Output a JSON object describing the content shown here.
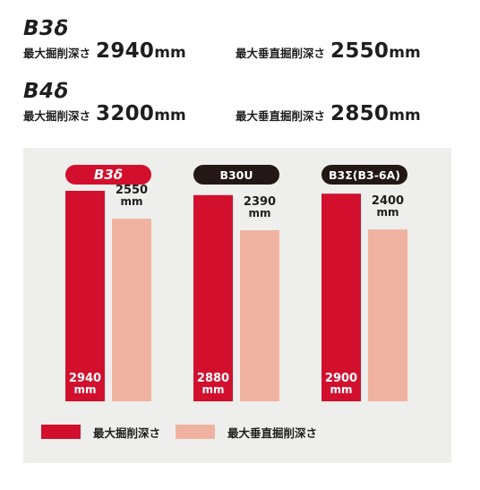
{
  "specs": [
    {
      "model": "B3δ",
      "items": [
        {
          "label": "最大掘削深さ",
          "value": "2940",
          "unit": "mm"
        },
        {
          "label": "最大垂直掘削深さ",
          "value": "2550",
          "unit": "mm"
        }
      ]
    },
    {
      "model": "B4δ",
      "items": [
        {
          "label": "最大掘削深さ",
          "value": "3200",
          "unit": "mm"
        },
        {
          "label": "最大垂直掘削深さ",
          "value": "2850",
          "unit": "mm"
        }
      ]
    }
  ],
  "colors": {
    "max_dig": "#d2102e",
    "max_vertical": "#f0b2a0",
    "highlight_badge": "#d2102e",
    "dark_badge": "#231815",
    "panel_bg": "#eeeeec"
  },
  "chart_data": {
    "type": "bar",
    "categories": [
      "B3δ",
      "B30U",
      "B3Σ(B3-6A)"
    ],
    "highlighted_category": "B3δ",
    "unit": "mm",
    "series": [
      {
        "name": "最大掘削深さ",
        "values": [
          2940,
          2880,
          2900
        ]
      },
      {
        "name": "最大垂直掘削深さ",
        "values": [
          2550,
          2390,
          2400
        ]
      }
    ],
    "ylim": [
      0,
      3300
    ],
    "grid": false,
    "legend": "bottom-left"
  }
}
